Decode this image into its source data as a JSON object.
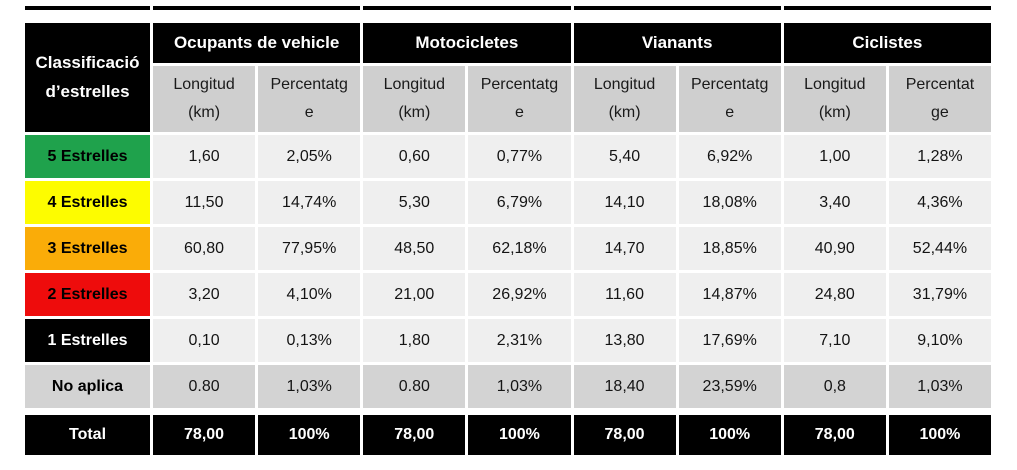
{
  "table": {
    "header": {
      "corner": "Classificació\nd’estrelles",
      "groups": [
        {
          "label": "Ocupants de vehicle",
          "subs": [
            "Longitud\n(km)",
            "Percentatg\ne"
          ]
        },
        {
          "label": "Motocicletes",
          "subs": [
            "Longitud\n(km)",
            "Percentatg\ne"
          ]
        },
        {
          "label": "Vianants",
          "subs": [
            "Longitud\n(km)",
            "Percentatg\ne"
          ]
        },
        {
          "label": "Ciclistes",
          "subs": [
            "Longitud\n(km)",
            "Percentat\nge"
          ]
        }
      ]
    },
    "rows": [
      {
        "label": "5 Estrelles",
        "label_bg": "#1fa24c",
        "label_fg": "#000000",
        "cells": [
          "1,60",
          "2,05%",
          "0,60",
          "0,77%",
          "5,40",
          "6,92%",
          "1,00",
          "1,28%"
        ]
      },
      {
        "label": "4 Estrelles",
        "label_bg": "#fdfc00",
        "label_fg": "#000000",
        "cells": [
          "11,50",
          "14,74%",
          "5,30",
          "6,79%",
          "14,10",
          "18,08%",
          "3,40",
          "4,36%"
        ]
      },
      {
        "label": "3 Estrelles",
        "label_bg": "#faac08",
        "label_fg": "#000000",
        "cells": [
          "60,80",
          "77,95%",
          "48,50",
          "62,18%",
          "14,70",
          "18,85%",
          "40,90",
          "52,44%"
        ]
      },
      {
        "label": "2 Estrelles",
        "label_bg": "#ee0c0c",
        "label_fg": "#000000",
        "cells": [
          "3,20",
          "4,10%",
          "21,00",
          "26,92%",
          "11,60",
          "14,87%",
          "24,80",
          "31,79%"
        ]
      },
      {
        "label": "1 Estrelles",
        "label_bg": "#000000",
        "label_fg": "#ffffff",
        "cells": [
          "0,10",
          "0,13%",
          "1,80",
          "2,31%",
          "13,80",
          "17,69%",
          "7,10",
          "9,10%"
        ]
      },
      {
        "label": "No aplica",
        "label_bg": "#d3d3d3",
        "label_fg": "#000000",
        "cells": [
          "0.80",
          "1,03%",
          "0.80",
          "1,03%",
          "18,40",
          "23,59%",
          "0,8",
          "1,03%"
        ]
      }
    ],
    "total": {
      "label": "Total",
      "cells": [
        "78,00",
        "100%",
        "78,00",
        "100%",
        "78,00",
        "100%",
        "78,00",
        "100%"
      ]
    },
    "colors": {
      "five_star_green": "#1fa24c",
      "four_star_yellow": "#fdfc00",
      "three_star_orange": "#faac08",
      "two_star_red": "#ee0c0c",
      "one_star_black": "#000000",
      "no_aplica_gray": "#d3d3d3",
      "header_black": "#000000",
      "subheader_gray": "#cfcfcf",
      "data_cell_gray": "#efefef"
    }
  }
}
